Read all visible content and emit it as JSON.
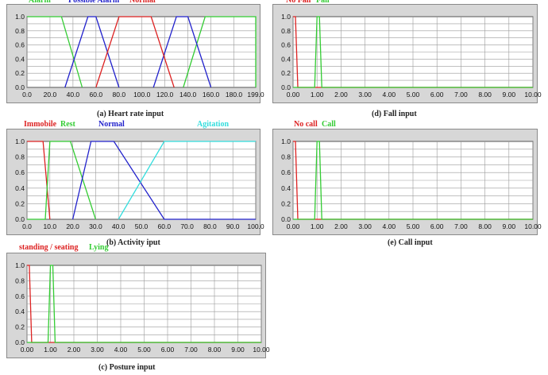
{
  "chart_data": [
    {
      "id": "heart",
      "type": "line",
      "caption": "(a) Heart rate input",
      "xlim": [
        0,
        199
      ],
      "ylim": [
        0,
        1
      ],
      "xticks": [
        "0.0",
        "20.0",
        "40.0",
        "60.0",
        "80.0",
        "100.0",
        "120.0",
        "140.0",
        "160.0",
        "180.0",
        "199.0"
      ],
      "xtick_values": [
        0,
        20,
        40,
        60,
        80,
        100,
        120,
        140,
        160,
        180,
        199
      ],
      "yticks": [
        "0.0",
        "0.2",
        "0.4",
        "0.6",
        "0.8",
        "1.0"
      ],
      "series": [
        {
          "name": "Alarm",
          "color": "#33cc33",
          "points": [
            [
              0,
              1
            ],
            [
              30,
              1
            ],
            [
              48,
              0
            ]
          ]
        },
        {
          "name": "Alarm",
          "color": "#33cc33",
          "points": [
            [
              136,
              0
            ],
            [
              155,
              1
            ],
            [
              199,
              1
            ],
            [
              199,
              0
            ]
          ]
        },
        {
          "name": "Possible Alarm",
          "color": "#2222cc",
          "points": [
            [
              33,
              0
            ],
            [
              53,
              1
            ],
            [
              60,
              1
            ],
            [
              80,
              0
            ]
          ]
        },
        {
          "name": "Possible Alarm",
          "color": "#2222cc",
          "points": [
            [
              110,
              0
            ],
            [
              130,
              1
            ],
            [
              140,
              1
            ],
            [
              160,
              0
            ]
          ]
        },
        {
          "name": "Normal",
          "color": "#dd2222",
          "points": [
            [
              60,
              0
            ],
            [
              80,
              1
            ],
            [
              108,
              1
            ],
            [
              128,
              0
            ]
          ]
        }
      ],
      "legend": [
        {
          "label": "Alarm",
          "color": "#33cc33"
        },
        {
          "label": "Possible Alarm",
          "color": "#2222cc"
        },
        {
          "label": "Normal",
          "color": "#dd2222"
        }
      ]
    },
    {
      "id": "fall",
      "type": "line",
      "caption": "(d) Fall input",
      "xlim": [
        0,
        10
      ],
      "ylim": [
        0,
        1
      ],
      "xticks": [
        "0.00",
        "1.00",
        "2.00",
        "3.00",
        "4.00",
        "5.00",
        "6.00",
        "7.00",
        "8.00",
        "9.00",
        "10.00"
      ],
      "xtick_values": [
        0,
        1,
        2,
        3,
        4,
        5,
        6,
        7,
        8,
        9,
        10
      ],
      "yticks": [
        "0.0",
        "0.2",
        "0.4",
        "0.6",
        "0.8",
        "1.0"
      ],
      "series": [
        {
          "name": "No Fall",
          "color": "#dd2222",
          "points": [
            [
              0,
              1
            ],
            [
              0.1,
              1
            ],
            [
              0.2,
              0
            ],
            [
              10,
              0
            ]
          ]
        },
        {
          "name": "Fall",
          "color": "#33cc33",
          "points": [
            [
              0,
              0
            ],
            [
              0.9,
              0
            ],
            [
              1.0,
              1
            ],
            [
              1.1,
              1
            ],
            [
              1.2,
              0
            ],
            [
              10,
              0
            ]
          ]
        }
      ],
      "legend": [
        {
          "label": "No Fall",
          "color": "#dd2222"
        },
        {
          "label": "Fall",
          "color": "#33cc33"
        }
      ]
    },
    {
      "id": "activity",
      "type": "line",
      "caption": "(b) Activity iput",
      "xlim": [
        0,
        100
      ],
      "ylim": [
        0,
        1
      ],
      "xticks": [
        "0.0",
        "10.0",
        "20.0",
        "30.0",
        "40.0",
        "50.0",
        "60.0",
        "70.0",
        "80.0",
        "90.0",
        "100.0"
      ],
      "xtick_values": [
        0,
        10,
        20,
        30,
        40,
        50,
        60,
        70,
        80,
        90,
        100
      ],
      "yticks": [
        "0.0",
        "0.2",
        "0.4",
        "0.6",
        "0.8",
        "1.0"
      ],
      "series": [
        {
          "name": "Immobile",
          "color": "#dd2222",
          "points": [
            [
              0,
              1
            ],
            [
              7,
              1
            ],
            [
              10,
              0
            ]
          ]
        },
        {
          "name": "Rest",
          "color": "#33cc33",
          "points": [
            [
              0,
              0
            ],
            [
              8,
              0
            ],
            [
              10,
              1
            ],
            [
              19,
              1
            ],
            [
              30,
              0
            ]
          ]
        },
        {
          "name": "Normal",
          "color": "#2222cc",
          "points": [
            [
              20,
              0
            ],
            [
              28,
              1
            ],
            [
              38,
              1
            ],
            [
              60,
              0
            ],
            [
              100,
              0
            ]
          ]
        },
        {
          "name": "Agitation",
          "color": "#33dddd",
          "points": [
            [
              40,
              0
            ],
            [
              60,
              1
            ],
            [
              100,
              1
            ]
          ]
        }
      ],
      "legend": [
        {
          "label": "Immobile",
          "color": "#dd2222"
        },
        {
          "label": "Rest",
          "color": "#33cc33"
        },
        {
          "label": "Normal",
          "color": "#2222cc"
        },
        {
          "label": "Agitation",
          "color": "#33dddd"
        }
      ]
    },
    {
      "id": "call",
      "type": "line",
      "caption": "(e) Call input",
      "xlim": [
        0,
        10
      ],
      "ylim": [
        0,
        1
      ],
      "xticks": [
        "0.00",
        "1.00",
        "2.00",
        "3.00",
        "4.00",
        "5.00",
        "6.00",
        "7.00",
        "8.00",
        "9.00",
        "10.00"
      ],
      "xtick_values": [
        0,
        1,
        2,
        3,
        4,
        5,
        6,
        7,
        8,
        9,
        10
      ],
      "yticks": [
        "0.0",
        "0.2",
        "0.4",
        "0.6",
        "0.8",
        "1.0"
      ],
      "series": [
        {
          "name": "No call",
          "color": "#dd2222",
          "points": [
            [
              0,
              1
            ],
            [
              0.1,
              1
            ],
            [
              0.2,
              0
            ],
            [
              10,
              0
            ]
          ]
        },
        {
          "name": "Call",
          "color": "#33cc33",
          "points": [
            [
              0,
              0
            ],
            [
              0.9,
              0
            ],
            [
              1.0,
              1
            ],
            [
              1.1,
              1
            ],
            [
              1.2,
              0
            ],
            [
              10,
              0
            ]
          ]
        }
      ],
      "legend": [
        {
          "label": "No call",
          "color": "#dd2222"
        },
        {
          "label": "Call",
          "color": "#33cc33"
        }
      ]
    },
    {
      "id": "posture",
      "type": "line",
      "caption": "(c) Posture input",
      "xlim": [
        0,
        10
      ],
      "ylim": [
        0,
        1
      ],
      "xticks": [
        "0.00",
        "1.00",
        "2.00",
        "3.00",
        "4.00",
        "5.00",
        "6.00",
        "7.00",
        "8.00",
        "9.00",
        "10.00"
      ],
      "xtick_values": [
        0,
        1,
        2,
        3,
        4,
        5,
        6,
        7,
        8,
        9,
        10
      ],
      "yticks": [
        "0.0",
        "0.2",
        "0.4",
        "0.6",
        "0.8",
        "1.0"
      ],
      "series": [
        {
          "name": "standing / seating",
          "color": "#dd2222",
          "points": [
            [
              0,
              1
            ],
            [
              0.1,
              1
            ],
            [
              0.2,
              0
            ],
            [
              10,
              0
            ]
          ]
        },
        {
          "name": "Lying",
          "color": "#33cc33",
          "points": [
            [
              0,
              0
            ],
            [
              0.9,
              0
            ],
            [
              1.0,
              1
            ],
            [
              1.1,
              1
            ],
            [
              1.2,
              0
            ],
            [
              10,
              0
            ]
          ]
        }
      ],
      "legend": [
        {
          "label": "standing / seating",
          "color": "#dd2222"
        },
        {
          "label": "Lying",
          "color": "#33cc33"
        }
      ]
    }
  ]
}
